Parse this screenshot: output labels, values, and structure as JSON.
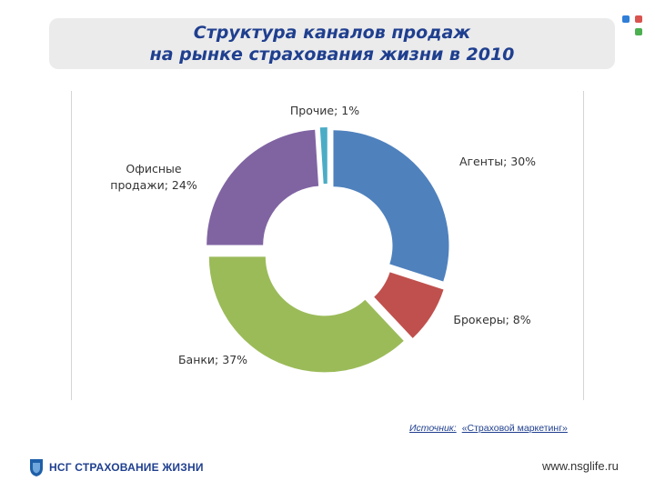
{
  "title": {
    "line1": "Структура каналов продаж",
    "line2": "на рынке страхования жизни в 2010"
  },
  "corner_squares": {
    "colors": [
      "#2f7ed8",
      "#d9534f",
      "#4caf50"
    ]
  },
  "chart_data": {
    "type": "pie",
    "variant": "exploded-donut",
    "title": "Структура каналов продаж на рынке страхования жизни в 2010",
    "slices": [
      {
        "label": "Агенты; 30%",
        "value": 30,
        "color": "#4f81bd"
      },
      {
        "label": "Брокеры; 8%",
        "value": 8,
        "color": "#c0504d"
      },
      {
        "label": "Банки; 37%",
        "value": 37,
        "color": "#9bbb59"
      },
      {
        "label_lines": [
          "Офисные",
          "продажи; 24%"
        ],
        "value": 24,
        "color": "#8064a2"
      },
      {
        "label": "Прочие; 1%",
        "value": 1,
        "color": "#4bacc6"
      }
    ],
    "legend": "none"
  },
  "source": {
    "label": "Источник:",
    "text": "«Страховой маркетинг»"
  },
  "footer": {
    "logo_text": "НСГ СТРАХОВАНИЕ ЖИЗНИ",
    "website": "www.nsglife.ru"
  }
}
